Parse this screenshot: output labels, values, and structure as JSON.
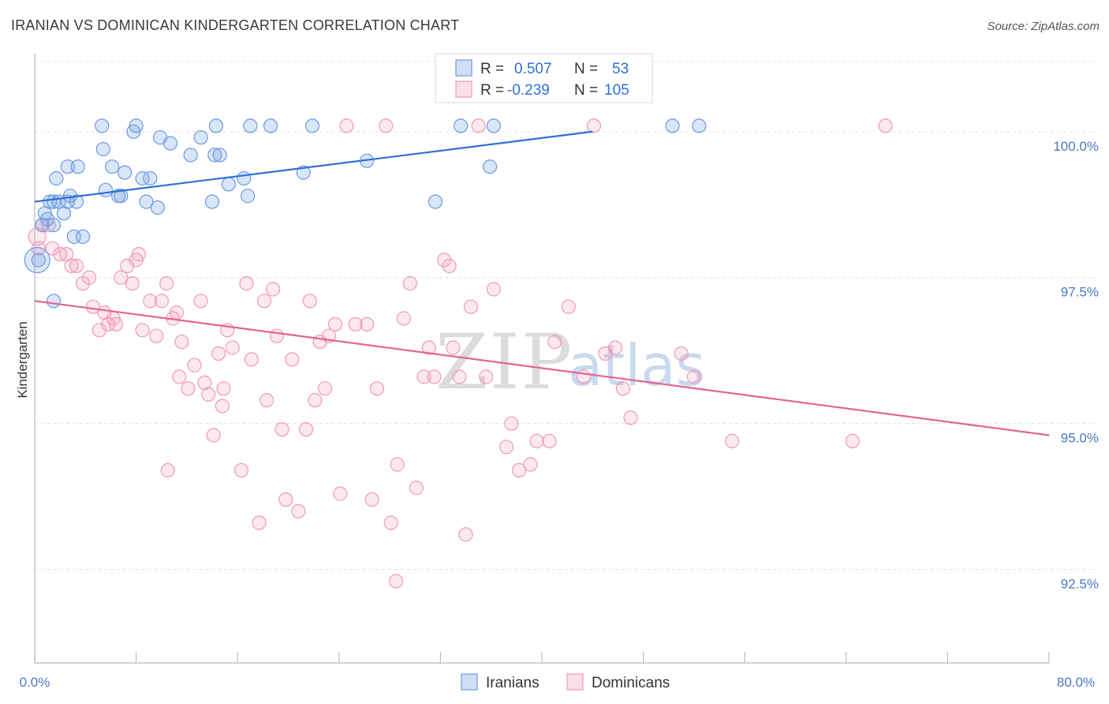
{
  "title": "IRANIAN VS DOMINICAN KINDERGARTEN CORRELATION CHART",
  "source": "Source: ZipAtlas.com",
  "watermark": {
    "zip": "ZIP",
    "atlas": "atlas"
  },
  "colors": {
    "iranians_fill": "rgba(120,160,230,0.28)",
    "iranians_stroke": "#6b9be0",
    "iranians_line": "#2f6fd6",
    "dominicans_fill": "rgba(240,150,180,0.22)",
    "dominicans_stroke": "#ee9ab6",
    "dominicans_line": "#e0668f",
    "grid": "#e2e2e2",
    "axis_text": "#4a78c4"
  },
  "legend": {
    "iranians": {
      "r_label": "R =",
      "r_value": "0.507",
      "n_label": "N =",
      "n_value": "53"
    },
    "dominicans": {
      "r_label": "R =",
      "r_value": "-0.239",
      "n_label": "N =",
      "n_value": "105"
    }
  },
  "chart_data": {
    "type": "scatter",
    "title": "IRANIAN VS DOMINICAN KINDERGARTEN CORRELATION CHART",
    "xlabel": "",
    "ylabel": "Kindergarten",
    "xlim": [
      0,
      80
    ],
    "ylim": [
      90.9,
      101.2
    ],
    "x_tick_labels": [
      "0.0%",
      "80.0%"
    ],
    "y_ticks": [
      92.5,
      95.0,
      97.5,
      100.0
    ],
    "y_tick_labels": [
      "92.5%",
      "95.0%",
      "97.5%",
      "100.0%"
    ],
    "grid": true,
    "legend": [
      "Iranians",
      "Dominicans"
    ],
    "series": [
      {
        "name": "Iranians",
        "r": 0.507,
        "n": 53,
        "trend": {
          "x": [
            0,
            44
          ],
          "y": [
            98.8,
            100.0
          ]
        },
        "points": [
          [
            0.3,
            97.8
          ],
          [
            0.6,
            98.4
          ],
          [
            0.8,
            98.6
          ],
          [
            1.0,
            98.5
          ],
          [
            1.2,
            98.8
          ],
          [
            1.5,
            98.8
          ],
          [
            1.5,
            98.4
          ],
          [
            1.7,
            99.2
          ],
          [
            1.9,
            98.8
          ],
          [
            2.3,
            98.6
          ],
          [
            2.6,
            99.4
          ],
          [
            2.6,
            98.8
          ],
          [
            2.8,
            98.9
          ],
          [
            3.1,
            98.2
          ],
          [
            3.3,
            98.8
          ],
          [
            3.4,
            99.4
          ],
          [
            5.3,
            100.1
          ],
          [
            5.4,
            99.7
          ],
          [
            5.6,
            99.0
          ],
          [
            6.1,
            99.4
          ],
          [
            6.6,
            98.9
          ],
          [
            6.8,
            98.9
          ],
          [
            7.1,
            99.3
          ],
          [
            7.8,
            100.0
          ],
          [
            8.0,
            100.1
          ],
          [
            8.5,
            99.2
          ],
          [
            8.8,
            98.8
          ],
          [
            9.1,
            99.2
          ],
          [
            9.7,
            98.7
          ],
          [
            9.9,
            99.9
          ],
          [
            10.7,
            99.8
          ],
          [
            12.3,
            99.6
          ],
          [
            13.1,
            99.9
          ],
          [
            14.0,
            98.8
          ],
          [
            14.2,
            99.6
          ],
          [
            14.3,
            100.1
          ],
          [
            14.6,
            99.6
          ],
          [
            15.3,
            99.1
          ],
          [
            16.5,
            99.2
          ],
          [
            16.8,
            98.9
          ],
          [
            17.0,
            100.1
          ],
          [
            18.6,
            100.1
          ],
          [
            21.2,
            99.3
          ],
          [
            21.9,
            100.1
          ],
          [
            26.2,
            99.5
          ],
          [
            31.6,
            98.8
          ],
          [
            33.6,
            100.1
          ],
          [
            35.9,
            99.4
          ],
          [
            36.2,
            100.1
          ],
          [
            50.3,
            100.1
          ],
          [
            52.4,
            100.1
          ],
          [
            3.8,
            98.2
          ],
          [
            1.5,
            97.1
          ]
        ]
      },
      {
        "name": "Dominicans",
        "r": -0.239,
        "n": 105,
        "trend": {
          "x": [
            0,
            80
          ],
          "y": [
            97.1,
            94.8
          ]
        },
        "points": [
          [
            0.3,
            98.0
          ],
          [
            0.6,
            98.4
          ],
          [
            1.1,
            98.4
          ],
          [
            1.4,
            98.0
          ],
          [
            2.0,
            97.9
          ],
          [
            2.5,
            97.9
          ],
          [
            2.9,
            97.7
          ],
          [
            3.3,
            97.7
          ],
          [
            3.8,
            97.4
          ],
          [
            4.3,
            97.5
          ],
          [
            4.6,
            97.0
          ],
          [
            5.1,
            96.6
          ],
          [
            5.5,
            96.9
          ],
          [
            5.8,
            96.7
          ],
          [
            6.2,
            96.8
          ],
          [
            6.4,
            96.7
          ],
          [
            6.8,
            97.5
          ],
          [
            7.3,
            97.7
          ],
          [
            7.7,
            97.4
          ],
          [
            8.0,
            97.8
          ],
          [
            8.2,
            97.9
          ],
          [
            8.5,
            96.6
          ],
          [
            9.1,
            97.1
          ],
          [
            9.6,
            96.5
          ],
          [
            10.0,
            97.1
          ],
          [
            10.4,
            97.4
          ],
          [
            10.5,
            94.2
          ],
          [
            10.9,
            96.8
          ],
          [
            11.2,
            96.9
          ],
          [
            11.6,
            96.4
          ],
          [
            12.1,
            95.6
          ],
          [
            12.6,
            96.0
          ],
          [
            13.1,
            97.1
          ],
          [
            13.4,
            95.7
          ],
          [
            13.7,
            95.5
          ],
          [
            14.1,
            94.8
          ],
          [
            14.5,
            96.2
          ],
          [
            14.8,
            95.3
          ],
          [
            15.2,
            96.6
          ],
          [
            15.6,
            96.3
          ],
          [
            16.3,
            94.2
          ],
          [
            16.7,
            97.4
          ],
          [
            17.1,
            96.1
          ],
          [
            17.7,
            93.3
          ],
          [
            18.1,
            97.1
          ],
          [
            18.3,
            95.4
          ],
          [
            18.8,
            97.3
          ],
          [
            19.1,
            96.5
          ],
          [
            19.5,
            94.9
          ],
          [
            19.8,
            93.7
          ],
          [
            20.3,
            96.1
          ],
          [
            20.8,
            93.5
          ],
          [
            21.4,
            94.9
          ],
          [
            21.7,
            97.1
          ],
          [
            22.1,
            95.4
          ],
          [
            22.5,
            96.4
          ],
          [
            22.9,
            95.6
          ],
          [
            23.2,
            96.5
          ],
          [
            23.7,
            96.7
          ],
          [
            24.1,
            93.8
          ],
          [
            24.6,
            100.1
          ],
          [
            25.3,
            96.7
          ],
          [
            26.2,
            96.7
          ],
          [
            26.6,
            93.7
          ],
          [
            27.0,
            95.6
          ],
          [
            27.7,
            100.1
          ],
          [
            28.1,
            93.3
          ],
          [
            28.6,
            94.3
          ],
          [
            29.1,
            96.8
          ],
          [
            29.6,
            97.4
          ],
          [
            30.1,
            93.9
          ],
          [
            30.7,
            95.8
          ],
          [
            31.1,
            96.3
          ],
          [
            31.5,
            95.8
          ],
          [
            32.3,
            97.8
          ],
          [
            32.7,
            97.7
          ],
          [
            33.0,
            96.3
          ],
          [
            33.5,
            95.8
          ],
          [
            34.0,
            93.1
          ],
          [
            34.4,
            97.0
          ],
          [
            35.0,
            100.1
          ],
          [
            35.6,
            95.8
          ],
          [
            36.2,
            97.3
          ],
          [
            37.2,
            94.6
          ],
          [
            37.6,
            95.0
          ],
          [
            38.2,
            94.2
          ],
          [
            39.1,
            94.3
          ],
          [
            39.6,
            94.7
          ],
          [
            40.6,
            94.7
          ],
          [
            41.0,
            96.4
          ],
          [
            42.1,
            97.0
          ],
          [
            43.3,
            95.8
          ],
          [
            44.1,
            100.1
          ],
          [
            45.0,
            96.2
          ],
          [
            45.8,
            96.3
          ],
          [
            46.4,
            95.6
          ],
          [
            47.0,
            95.1
          ],
          [
            51.0,
            96.2
          ],
          [
            52.0,
            95.8
          ],
          [
            55.0,
            94.7
          ],
          [
            64.5,
            94.7
          ],
          [
            67.1,
            100.1
          ],
          [
            28.5,
            92.3
          ],
          [
            11.4,
            95.8
          ],
          [
            14.9,
            95.6
          ]
        ]
      }
    ]
  },
  "bottom_legend": {
    "iranians": "Iranians",
    "dominicans": "Dominicans"
  }
}
